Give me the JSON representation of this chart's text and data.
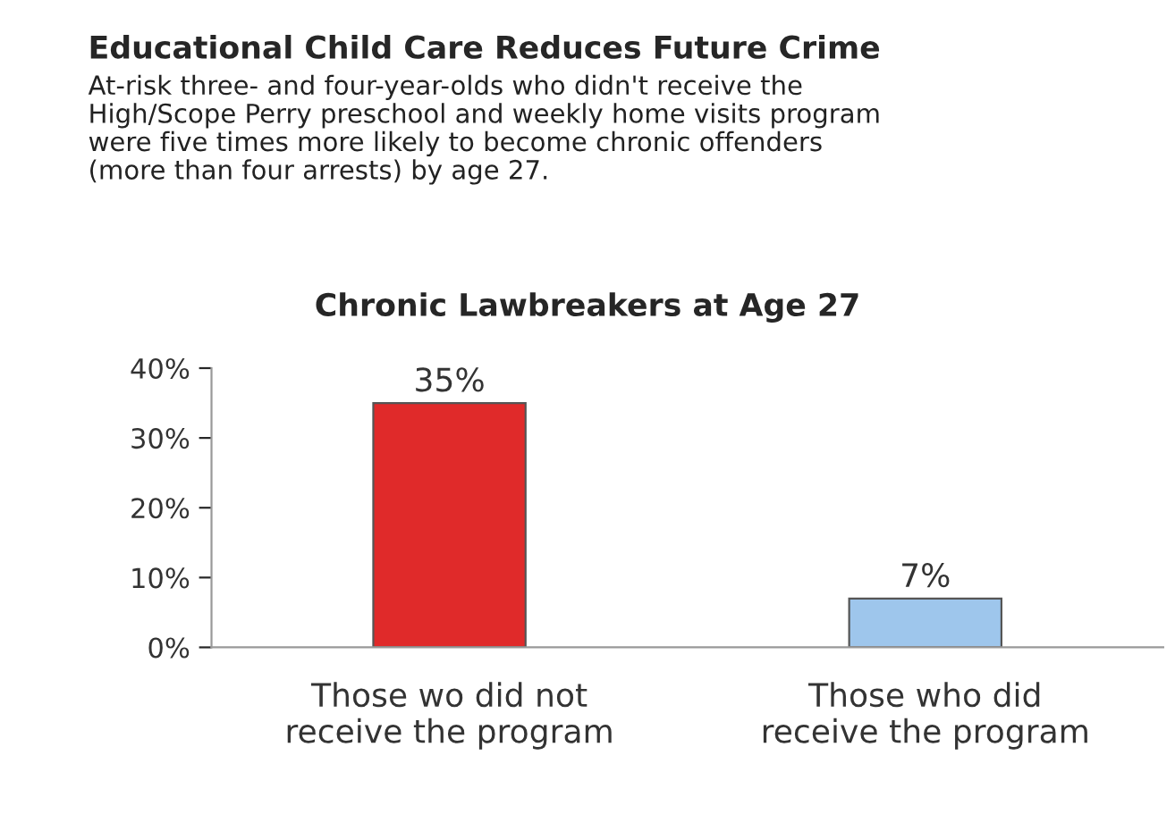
{
  "chart_data": {
    "type": "bar",
    "title": "Educational Child Care Reduces Future Crime",
    "subtitle": "At-risk three- and four-year-olds who didn't receive the\nHigh/Scope Perry preschool and weekly home visits program\nwere five times more likely to become chronic offenders\n(more than four arrests) by age 27.",
    "annotations": [
      "Chronic Lawbreakers at Age 27"
    ],
    "categories": [
      "Those wo did not\nreceive the program",
      "Those who did\nreceive the program"
    ],
    "values": [
      35,
      7
    ],
    "colors": [
      "#e02a2a",
      "#9ec6ec"
    ],
    "value_labels": [
      "35%",
      "7%"
    ],
    "ylim": [
      0,
      40
    ],
    "yticks": [
      {
        "value": 0,
        "label": "0%"
      },
      {
        "value": 10,
        "label": "10%"
      },
      {
        "value": 20,
        "label": "20%"
      },
      {
        "value": 30,
        "label": "30%"
      },
      {
        "value": 40,
        "label": "40%"
      }
    ],
    "grid": false,
    "legend": false
  }
}
